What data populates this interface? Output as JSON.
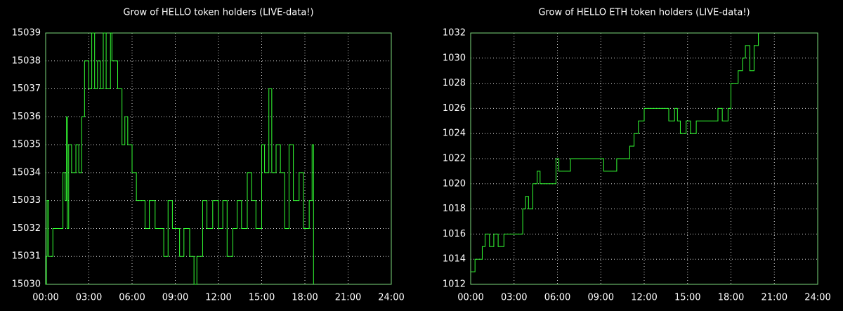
{
  "chart_data": [
    {
      "type": "line",
      "step": true,
      "title": "Grow of HELLO token holders (LIVE-data!)",
      "grid": true,
      "xlim": [
        0,
        24
      ],
      "xticks": [
        {
          "value": 0,
          "label": "00:00"
        },
        {
          "value": 3,
          "label": "03:00"
        },
        {
          "value": 6,
          "label": "06:00"
        },
        {
          "value": 9,
          "label": "09:00"
        },
        {
          "value": 12,
          "label": "12:00"
        },
        {
          "value": 15,
          "label": "15:00"
        },
        {
          "value": 18,
          "label": "18:00"
        },
        {
          "value": 21,
          "label": "21:00"
        },
        {
          "value": 24,
          "label": "24:00"
        }
      ],
      "ylim": [
        15030,
        15039
      ],
      "yticks": [
        15030,
        15031,
        15032,
        15033,
        15034,
        15035,
        15036,
        15037,
        15038,
        15039
      ],
      "series": [
        {
          "color": "#33ff33",
          "x": [
            0.0,
            0.05,
            0.1,
            0.2,
            0.5,
            0.8,
            1.2,
            1.35,
            1.45,
            1.5,
            1.6,
            1.8,
            2.1,
            2.3,
            2.5,
            2.7,
            3.0,
            3.2,
            3.4,
            3.6,
            3.8,
            4.0,
            4.2,
            4.5,
            4.6,
            5.0,
            5.3,
            5.5,
            5.7,
            6.0,
            6.3,
            6.7,
            6.9,
            7.2,
            7.6,
            8.0,
            8.2,
            8.5,
            8.8,
            9.3,
            9.6,
            10.0,
            10.3,
            10.5,
            10.9,
            11.2,
            11.6,
            12.0,
            12.3,
            12.6,
            13.0,
            13.3,
            13.6,
            14.0,
            14.3,
            14.6,
            15.0,
            15.2,
            15.5,
            15.7,
            16.0,
            16.3,
            16.6,
            16.9,
            17.2,
            17.6,
            17.9,
            18.3,
            18.5,
            18.6
          ],
          "values": [
            15030,
            15031,
            15033,
            15031,
            15032,
            15032,
            15034,
            15033,
            15036,
            15032,
            15035,
            15034,
            15035,
            15034,
            15036,
            15038,
            15037,
            15039,
            15037,
            15038,
            15037,
            15039,
            15037,
            15039,
            15038,
            15037,
            15035,
            15036,
            15035,
            15034,
            15033,
            15033,
            15032,
            15033,
            15032,
            15032,
            15031,
            15033,
            15032,
            15031,
            15032,
            15031,
            15030,
            15031,
            15033,
            15032,
            15033,
            15032,
            15033,
            15031,
            15032,
            15033,
            15032,
            15034,
            15033,
            15032,
            15035,
            15034,
            15037,
            15034,
            15035,
            15034,
            15032,
            15035,
            15033,
            15034,
            15032,
            15033,
            15035,
            15030
          ]
        }
      ]
    },
    {
      "type": "line",
      "step": true,
      "title": "Grow of HELLO ETH token holders (LIVE-data!)",
      "grid": true,
      "xlim": [
        0,
        24
      ],
      "xticks": [
        {
          "value": 0,
          "label": "00:00"
        },
        {
          "value": 3,
          "label": "03:00"
        },
        {
          "value": 6,
          "label": "06:00"
        },
        {
          "value": 9,
          "label": "09:00"
        },
        {
          "value": 12,
          "label": "12:00"
        },
        {
          "value": 15,
          "label": "15:00"
        },
        {
          "value": 18,
          "label": "18:00"
        },
        {
          "value": 21,
          "label": "21:00"
        },
        {
          "value": 24,
          "label": "24:00"
        }
      ],
      "ylim": [
        1012,
        1032
      ],
      "yticks": [
        1012,
        1014,
        1016,
        1018,
        1020,
        1022,
        1024,
        1026,
        1028,
        1030,
        1032
      ],
      "series": [
        {
          "color": "#33ff33",
          "x": [
            0,
            0.3,
            0.8,
            1.0,
            1.3,
            1.6,
            1.9,
            2.3,
            3.0,
            3.6,
            3.8,
            4.0,
            4.3,
            4.6,
            4.8,
            5.5,
            5.9,
            6.1,
            6.9,
            9.0,
            9.2,
            10.1,
            11.0,
            11.3,
            11.6,
            12.0,
            13.7,
            14.1,
            14.3,
            14.5,
            14.9,
            15.2,
            15.6,
            17.0,
            17.1,
            17.4,
            17.8,
            18.0,
            18.5,
            18.8,
            19.0,
            19.3,
            19.6,
            19.9
          ],
          "values": [
            1013,
            1014,
            1015,
            1016,
            1015,
            1016,
            1015,
            1016,
            1016,
            1018,
            1019,
            1018,
            1020,
            1021,
            1020,
            1020,
            1022,
            1021,
            1022,
            1022,
            1021,
            1022,
            1023,
            1024,
            1025,
            1026,
            1025,
            1026,
            1025,
            1024,
            1025,
            1024,
            1025,
            1025,
            1026,
            1025,
            1026,
            1028,
            1029,
            1030,
            1031,
            1029,
            1031,
            1032
          ]
        }
      ]
    }
  ]
}
